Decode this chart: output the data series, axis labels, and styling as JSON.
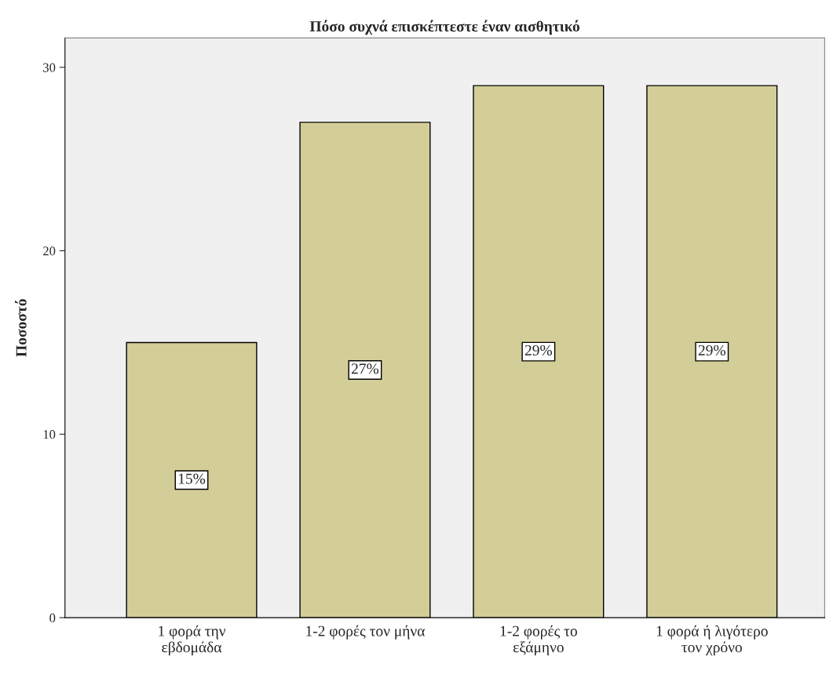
{
  "chart_data": {
    "type": "bar",
    "title": "Πόσο συχνά επισκέπτεστε έναν αισθητικό",
    "ylabel": "Ποσοστό",
    "categories": [
      "1 φορά την\nεβδομάδα",
      "1-2 φορές τον μήνα",
      "1-2 φορές το\nεξάμηνο",
      "1 φορά ή λιγότερο\nτον χρόνο"
    ],
    "values": [
      15,
      27,
      29,
      29
    ],
    "color": "#d3ce97",
    "value_labels": [
      "15%",
      "27%",
      "29%",
      "29%"
    ],
    "ylim": [
      0,
      31.6
    ],
    "yticks": [
      0,
      10,
      20,
      30
    ],
    "grid": false,
    "legend": false
  }
}
